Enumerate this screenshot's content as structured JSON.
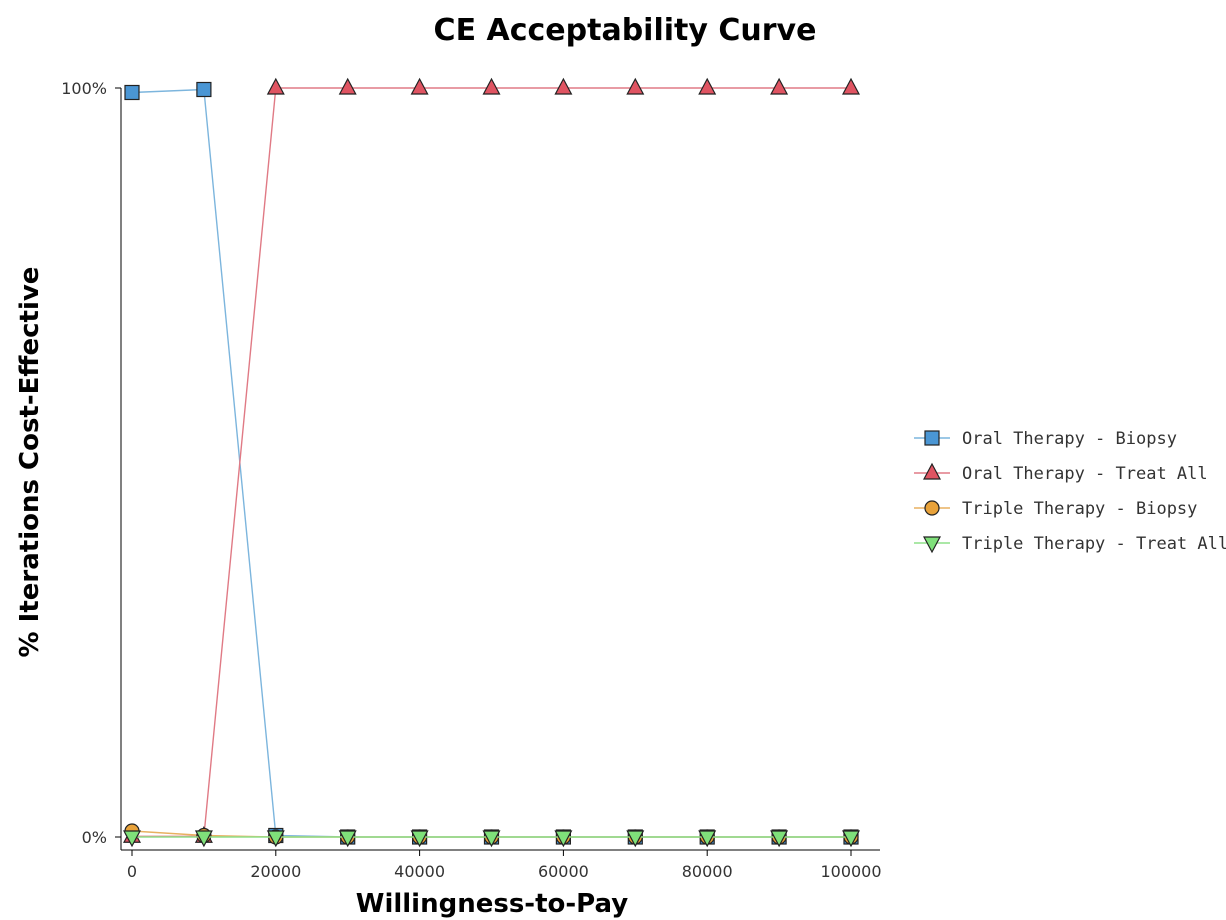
{
  "chart_data": {
    "type": "line",
    "title": "CE Acceptability Curve",
    "xlabel": "Willingness-to-Pay",
    "ylabel": "% Iterations Cost-Effective",
    "xlim": [
      0,
      100000
    ],
    "ylim": [
      0,
      100
    ],
    "x_ticks": [
      "0",
      "20000",
      "40000",
      "60000",
      "80000",
      "100000"
    ],
    "x_tick_values": [
      0,
      20000,
      40000,
      60000,
      80000,
      100000
    ],
    "y_ticks": [
      "0%",
      "100%"
    ],
    "y_tick_values": [
      0,
      100
    ],
    "grid": false,
    "legend_position": "right",
    "x": [
      0,
      10000,
      20000,
      30000,
      40000,
      50000,
      60000,
      70000,
      80000,
      90000,
      100000
    ],
    "series": [
      {
        "name": "Oral Therapy - Biopsy",
        "marker": "square",
        "color": "#4a96d4",
        "line_color": "#7cb5dd",
        "values": [
          99.4,
          99.8,
          0.2,
          0,
          0,
          0,
          0,
          0,
          0,
          0,
          0
        ]
      },
      {
        "name": "Oral Therapy - Treat All",
        "marker": "triangle-up",
        "color": "#e05462",
        "line_color": "#e07a85",
        "values": [
          0.1,
          0.1,
          100,
          100,
          100,
          100,
          100,
          100,
          100,
          100,
          100
        ]
      },
      {
        "name": "Triple Therapy - Biopsy",
        "marker": "circle",
        "color": "#e8a23a",
        "line_color": "#e8b060",
        "values": [
          0.8,
          0.2,
          0,
          0,
          0,
          0,
          0,
          0,
          0,
          0,
          0
        ]
      },
      {
        "name": "Triple Therapy - Treat All",
        "marker": "triangle-down",
        "color": "#7fe07a",
        "line_color": "#8fe08a",
        "values": [
          0,
          0,
          0,
          0,
          0,
          0,
          0,
          0,
          0,
          0,
          0
        ]
      }
    ]
  }
}
